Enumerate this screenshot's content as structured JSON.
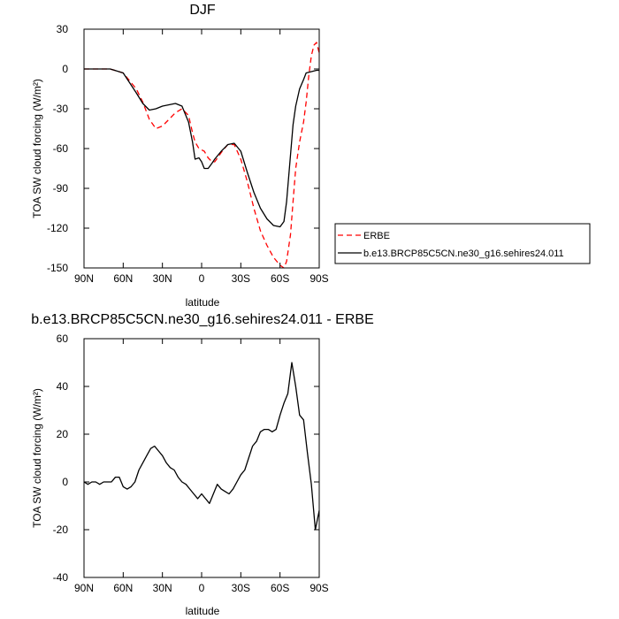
{
  "chart_data": [
    {
      "type": "line",
      "title": "DJF",
      "xlabel": "latitude",
      "ylabel": "TOA SW cloud forcing (W/m²)",
      "xlim": [
        90,
        -90
      ],
      "ylim": [
        -150,
        30
      ],
      "xticks": [
        "90N",
        "60N",
        "30N",
        "0",
        "30S",
        "60S",
        "90S"
      ],
      "yticks": [
        30,
        0,
        -30,
        -60,
        -90,
        -120,
        -150
      ],
      "grid": false,
      "legend_position": "right",
      "series": [
        {
          "name": "ERBE",
          "color": "#ff0000",
          "dash": "dashed",
          "x": [
            90,
            80,
            70,
            60,
            50,
            45,
            40,
            35,
            30,
            25,
            20,
            15,
            10,
            7,
            5,
            2,
            0,
            -2,
            -5,
            -8,
            -10,
            -15,
            -20,
            -25,
            -30,
            -35,
            -40,
            -45,
            -50,
            -55,
            -60,
            -63,
            -65,
            -68,
            -70,
            -72,
            -75,
            -78,
            -80,
            -82,
            -84,
            -86,
            -88,
            -90
          ],
          "y": [
            0,
            0,
            0,
            -3,
            -15,
            -25,
            -38,
            -45,
            -43,
            -38,
            -33,
            -30,
            -35,
            -48,
            -55,
            -60,
            -61,
            -62,
            -67,
            -70,
            -70,
            -63,
            -57,
            -57,
            -68,
            -85,
            -105,
            -122,
            -133,
            -142,
            -148,
            -150,
            -145,
            -125,
            -100,
            -75,
            -55,
            -40,
            -25,
            -5,
            10,
            18,
            20,
            12
          ]
        },
        {
          "name": "b.e13.BRCP85C5CN.ne30_g16.sehires24.011",
          "color": "#000000",
          "dash": "solid",
          "x": [
            90,
            80,
            70,
            60,
            50,
            45,
            40,
            35,
            30,
            25,
            20,
            15,
            10,
            7,
            5,
            2,
            0,
            -2,
            -5,
            -8,
            -10,
            -15,
            -20,
            -25,
            -30,
            -35,
            -40,
            -45,
            -50,
            -55,
            -60,
            -63,
            -65,
            -68,
            -70,
            -72,
            -75,
            -78,
            -80,
            -84,
            -88,
            -90
          ],
          "y": [
            0,
            0,
            0,
            -3,
            -18,
            -26,
            -31,
            -30,
            -28,
            -27,
            -26,
            -28,
            -40,
            -55,
            -68,
            -67,
            -70,
            -75,
            -75,
            -71,
            -68,
            -62,
            -57,
            -56,
            -62,
            -78,
            -93,
            -105,
            -113,
            -118,
            -119,
            -115,
            -100,
            -65,
            -42,
            -28,
            -15,
            -8,
            -3,
            -2,
            -1,
            -1
          ]
        }
      ]
    },
    {
      "type": "line",
      "title": "b.e13.BRCP85C5CN.ne30_g16.sehires24.011 - ERBE",
      "xlabel": "latitude",
      "ylabel": "TOA SW cloud forcing (W/m²)",
      "xlim": [
        90,
        -90
      ],
      "ylim": [
        -40,
        60
      ],
      "xticks": [
        "90N",
        "60N",
        "30N",
        "0",
        "30S",
        "60S",
        "90S"
      ],
      "yticks": [
        60,
        40,
        20,
        0,
        -20,
        -40
      ],
      "grid": false,
      "series": [
        {
          "color": "#000000",
          "dash": "solid",
          "x": [
            90,
            87,
            84,
            81,
            78,
            75,
            72,
            69,
            66,
            63,
            60,
            57,
            54,
            51,
            48,
            45,
            42,
            39,
            36,
            33,
            30,
            27,
            24,
            21,
            18,
            15,
            12,
            9,
            6,
            3,
            0,
            -3,
            -6,
            -9,
            -12,
            -15,
            -18,
            -21,
            -24,
            -27,
            -30,
            -33,
            -36,
            -39,
            -42,
            -45,
            -48,
            -51,
            -54,
            -57,
            -60,
            -63,
            -66,
            -69,
            -72,
            -75,
            -78,
            -81,
            -84,
            -87,
            -90
          ],
          "y": [
            0,
            -1,
            0,
            0,
            -1,
            0,
            0,
            0,
            2,
            2,
            -2,
            -3,
            -2,
            0,
            5,
            8,
            11,
            14,
            15,
            13,
            11,
            8,
            6,
            5,
            2,
            0,
            -1,
            -3,
            -5,
            -7,
            -5,
            -7,
            -9,
            -5,
            -1,
            -3,
            -4,
            -5,
            -3,
            0,
            3,
            5,
            10,
            15,
            17,
            21,
            22,
            22,
            21,
            22,
            28,
            33,
            37,
            50,
            40,
            28,
            26,
            12,
            -1,
            -20,
            -12
          ]
        }
      ]
    }
  ]
}
